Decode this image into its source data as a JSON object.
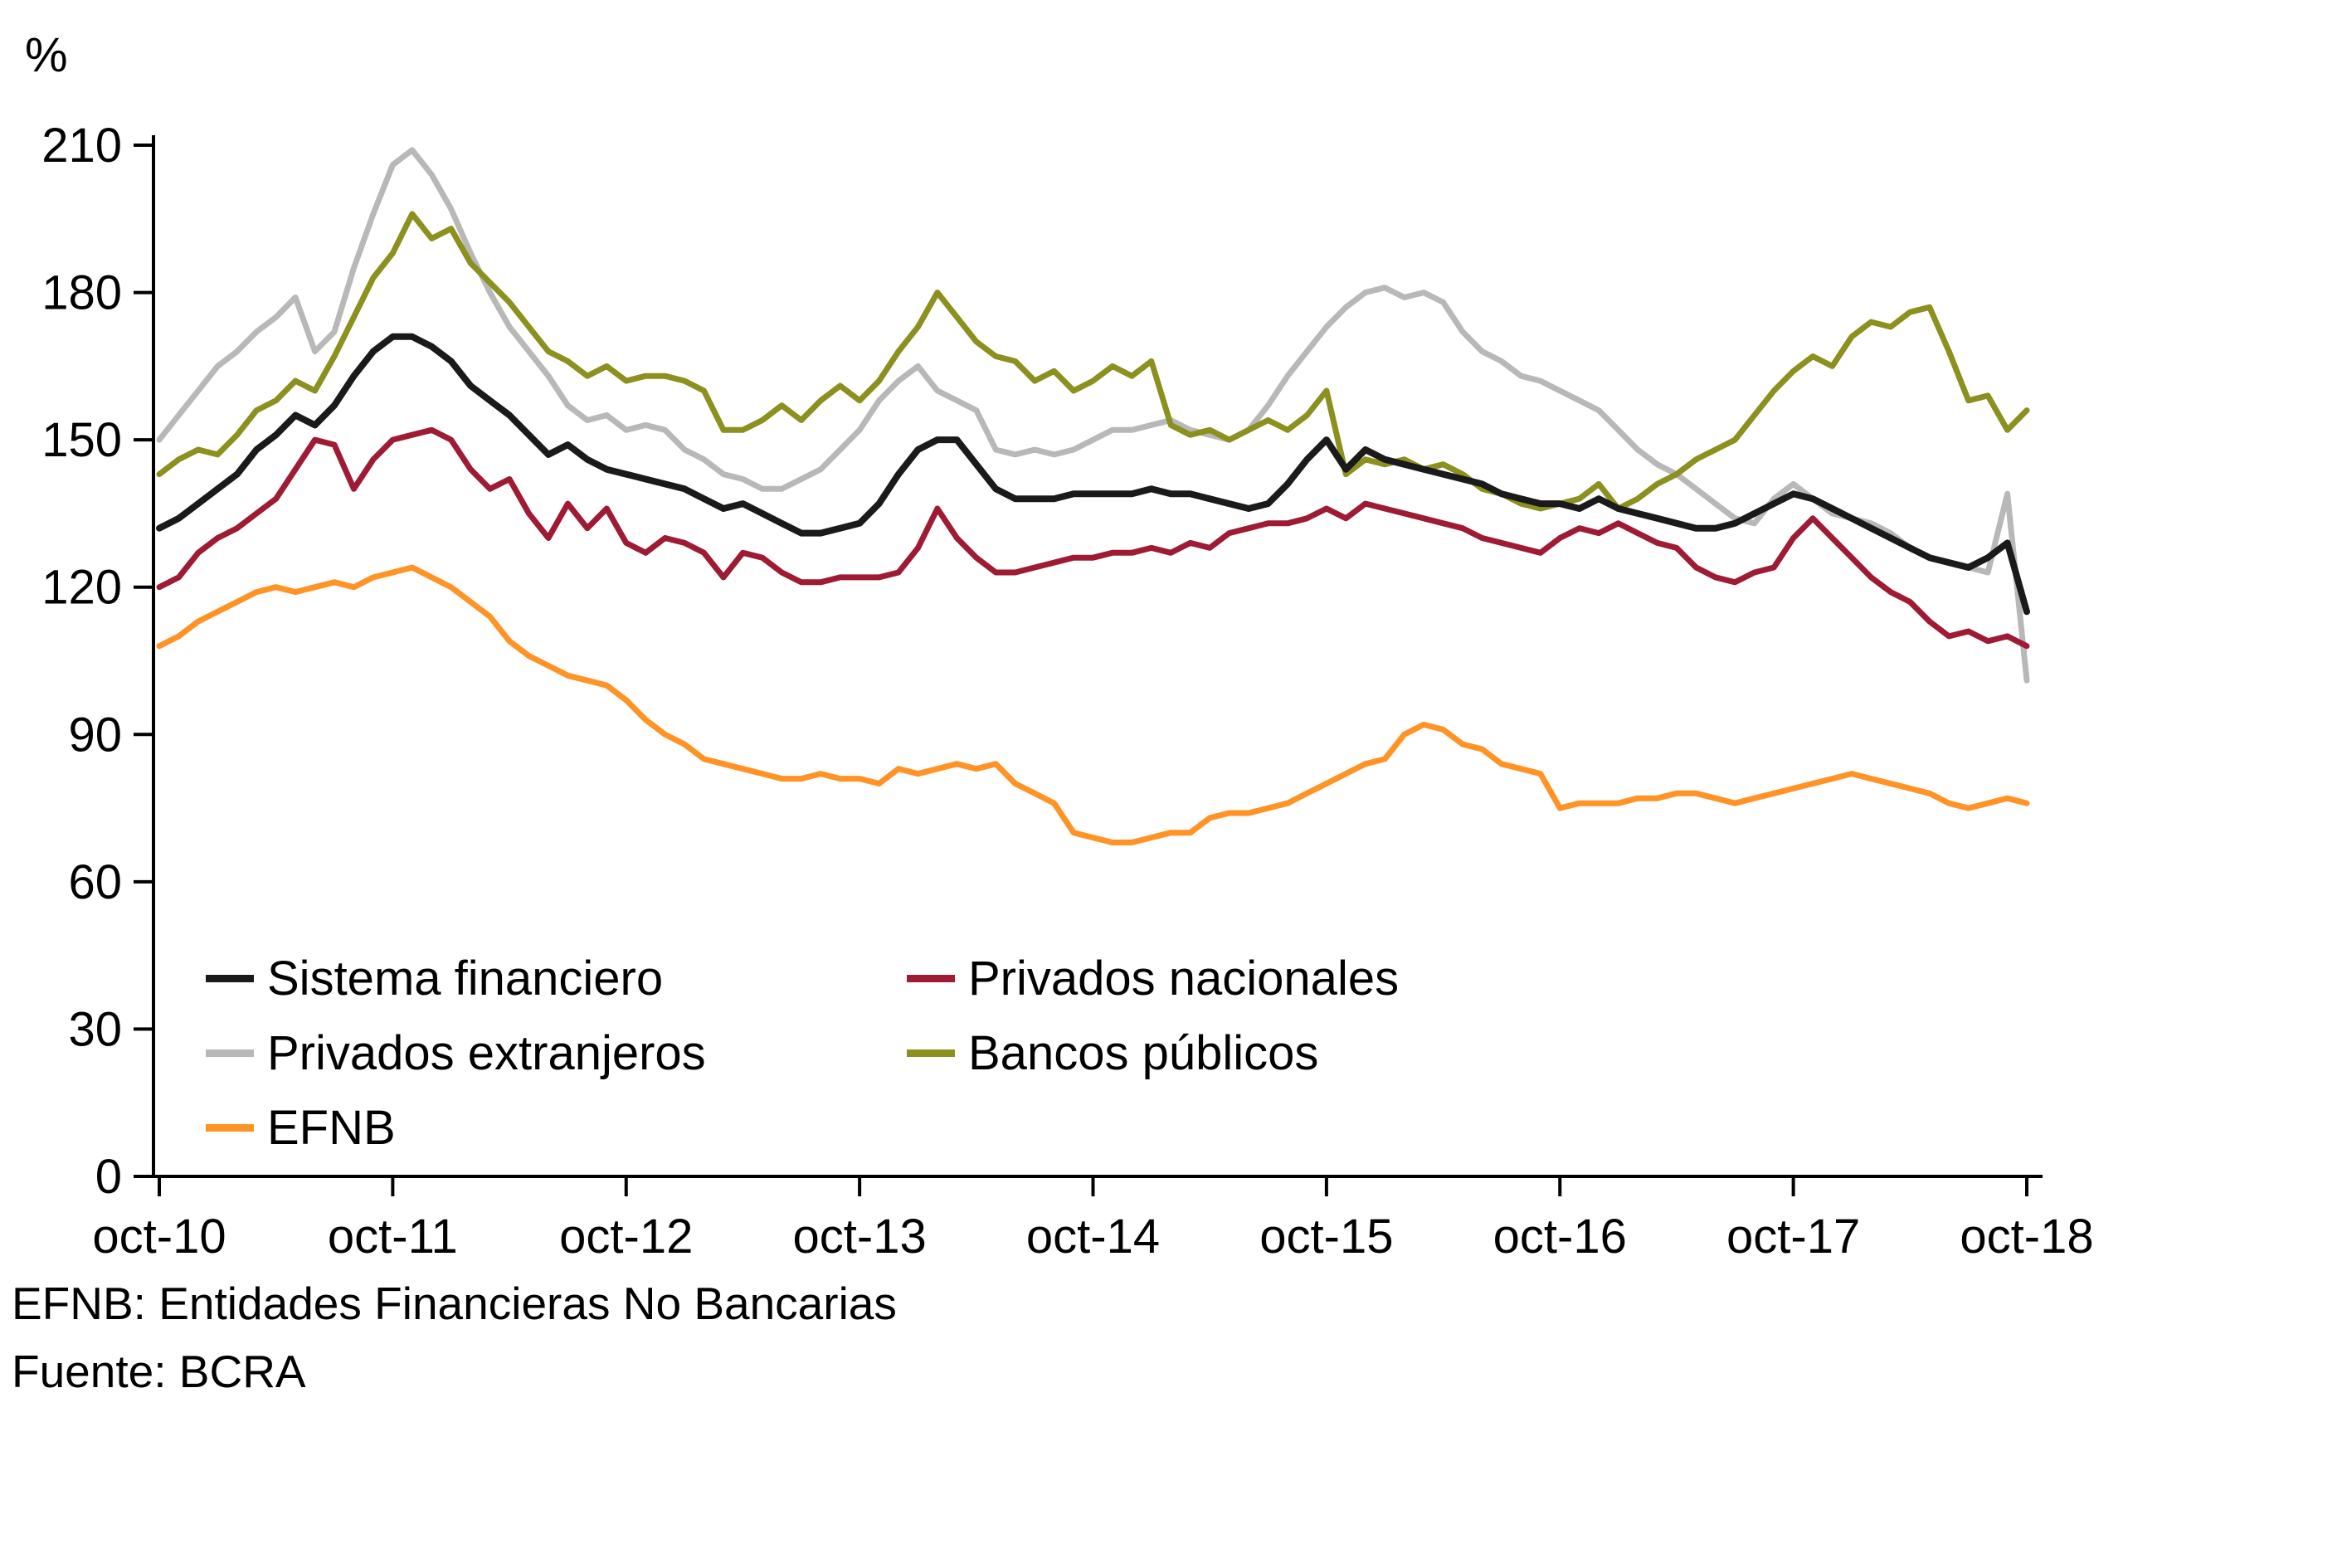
{
  "page": {
    "background": "#ffffff",
    "axis_color": "#000000"
  },
  "chart_data": {
    "type": "line",
    "unit_label": "%",
    "x_tick_labels": [
      "oct-10",
      "oct-11",
      "oct-12",
      "oct-13",
      "oct-14",
      "oct-15",
      "oct-16",
      "oct-17",
      "oct-18"
    ],
    "x_count": 97,
    "x_frequency": "monthly",
    "ylim": [
      0,
      210
    ],
    "yticks": [
      0,
      30,
      60,
      90,
      120,
      150,
      180,
      210
    ],
    "grid": false,
    "legend_position": "inside-bottom-left",
    "draw_order": [
      2,
      3,
      1,
      4,
      0
    ],
    "series": [
      {
        "name": "Sistema financiero",
        "color": "#1a1a1a",
        "width": 8,
        "values": [
          132,
          134,
          137,
          140,
          143,
          148,
          151,
          155,
          153,
          157,
          163,
          168,
          171,
          171,
          169,
          166,
          161,
          158,
          155,
          151,
          147,
          149,
          146,
          144,
          143,
          142,
          141,
          140,
          138,
          136,
          137,
          135,
          133,
          131,
          131,
          132,
          133,
          137,
          143,
          148,
          150,
          150,
          145,
          140,
          138,
          138,
          138,
          139,
          139,
          139,
          139,
          140,
          139,
          139,
          138,
          137,
          136,
          137,
          141,
          146,
          150,
          144,
          148,
          146,
          145,
          144,
          143,
          142,
          141,
          139,
          138,
          137,
          137,
          136,
          138,
          136,
          135,
          134,
          133,
          132,
          132,
          133,
          135,
          137,
          139,
          138,
          136,
          134,
          132,
          130,
          128,
          126,
          125,
          124,
          126,
          129,
          115
        ]
      },
      {
        "name": "Privados nacionales",
        "color": "#9e1b33",
        "width": 7,
        "values": [
          120,
          122,
          127,
          130,
          132,
          135,
          138,
          144,
          150,
          149,
          140,
          146,
          150,
          151,
          152,
          150,
          144,
          140,
          142,
          135,
          130,
          137,
          132,
          136,
          129,
          127,
          130,
          129,
          127,
          122,
          127,
          126,
          123,
          121,
          121,
          122,
          122,
          122,
          123,
          128,
          136,
          130,
          126,
          123,
          123,
          124,
          125,
          126,
          126,
          127,
          127,
          128,
          127,
          129,
          128,
          131,
          132,
          133,
          133,
          134,
          136,
          134,
          137,
          136,
          135,
          134,
          133,
          132,
          130,
          129,
          128,
          127,
          130,
          132,
          131,
          133,
          131,
          129,
          128,
          124,
          122,
          121,
          123,
          124,
          130,
          134,
          130,
          126,
          122,
          119,
          117,
          113,
          110,
          111,
          109,
          110,
          108
        ]
      },
      {
        "name": "Privados extranjeros",
        "color": "#b8b8b8",
        "width": 7,
        "values": [
          150,
          155,
          160,
          165,
          168,
          172,
          175,
          179,
          168,
          172,
          185,
          196,
          206,
          209,
          204,
          197,
          188,
          180,
          173,
          168,
          163,
          157,
          154,
          155,
          152,
          153,
          152,
          148,
          146,
          143,
          142,
          140,
          140,
          142,
          144,
          148,
          152,
          158,
          162,
          165,
          160,
          158,
          156,
          148,
          147,
          148,
          147,
          148,
          150,
          152,
          152,
          153,
          154,
          152,
          151,
          150,
          152,
          157,
          163,
          168,
          173,
          177,
          180,
          181,
          179,
          180,
          178,
          172,
          168,
          166,
          163,
          162,
          160,
          158,
          156,
          152,
          148,
          145,
          143,
          140,
          137,
          134,
          133,
          138,
          141,
          138,
          135,
          134,
          133,
          131,
          128,
          126,
          125,
          124,
          123,
          139,
          101
        ]
      },
      {
        "name": "Bancos públicos",
        "color": "#8c901f",
        "width": 7,
        "values": [
          143,
          146,
          148,
          147,
          151,
          156,
          158,
          162,
          160,
          167,
          175,
          183,
          188,
          196,
          191,
          193,
          186,
          182,
          178,
          173,
          168,
          166,
          163,
          165,
          162,
          163,
          163,
          162,
          160,
          152,
          152,
          154,
          157,
          154,
          158,
          161,
          158,
          162,
          168,
          173,
          180,
          175,
          170,
          167,
          166,
          162,
          164,
          160,
          162,
          165,
          163,
          166,
          153,
          151,
          152,
          150,
          152,
          154,
          152,
          155,
          160,
          143,
          146,
          145,
          146,
          144,
          145,
          143,
          140,
          139,
          137,
          136,
          137,
          138,
          141,
          136,
          138,
          141,
          143,
          146,
          148,
          150,
          155,
          160,
          164,
          167,
          165,
          171,
          174,
          173,
          176,
          177,
          168,
          158,
          159,
          152,
          156
        ]
      },
      {
        "name": "EFNB",
        "color": "#ff9326",
        "width": 7,
        "values": [
          108,
          110,
          113,
          115,
          117,
          119,
          120,
          119,
          120,
          121,
          120,
          122,
          123,
          124,
          122,
          120,
          117,
          114,
          109,
          106,
          104,
          102,
          101,
          100,
          97,
          93,
          90,
          88,
          85,
          84,
          83,
          82,
          81,
          81,
          82,
          81,
          81,
          80,
          83,
          82,
          83,
          84,
          83,
          84,
          80,
          78,
          76,
          70,
          69,
          68,
          68,
          69,
          70,
          70,
          73,
          74,
          74,
          75,
          76,
          78,
          80,
          82,
          84,
          85,
          90,
          92,
          91,
          88,
          87,
          84,
          83,
          82,
          75,
          76,
          76,
          76,
          77,
          77,
          78,
          78,
          77,
          76,
          77,
          78,
          79,
          80,
          81,
          82,
          81,
          80,
          79,
          78,
          76,
          75,
          76,
          77,
          76
        ]
      }
    ]
  },
  "footnotes": [
    "EFNB: Entidades Financieras No Bancarias",
    "Fuente: BCRA"
  ]
}
